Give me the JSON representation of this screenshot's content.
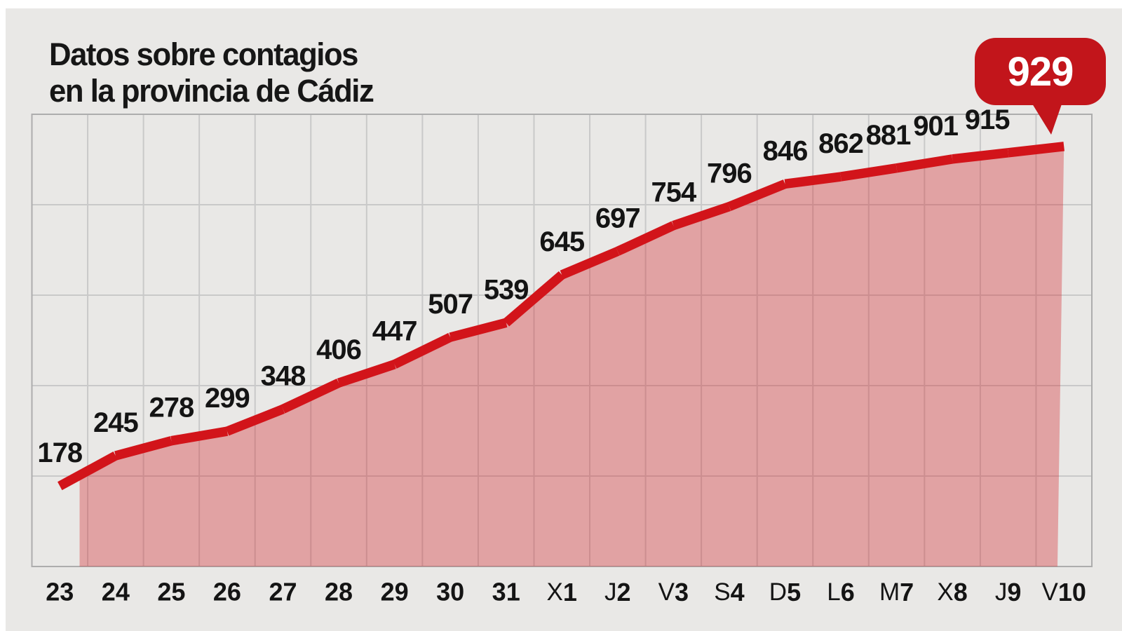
{
  "header": {
    "title_line1": "Datos sobre contagios",
    "title_line2": "en la provincia de Cádiz"
  },
  "callout": {
    "value": "929"
  },
  "colors": {
    "page": "#ffffff",
    "background": "#e9e8e6",
    "grid": "#c9c9c9",
    "border": "#adadad",
    "line": "#d2141a",
    "fill": "rgba(210,20,26,0.33)",
    "callout": "#c2151b",
    "text": "#161616"
  },
  "chart_data": {
    "type": "area",
    "title": "Datos sobre contagios en la provincia de Cádiz",
    "xlabel": "",
    "ylabel": "",
    "categories": [
      "23",
      "24",
      "25",
      "26",
      "27",
      "28",
      "29",
      "30",
      "31",
      "X1",
      "J2",
      "V3",
      "S4",
      "D5",
      "L6",
      "M7",
      "X8",
      "J9",
      "V10"
    ],
    "x_label_parts": [
      {
        "num": "23"
      },
      {
        "num": "24"
      },
      {
        "num": "25"
      },
      {
        "num": "26"
      },
      {
        "num": "27"
      },
      {
        "num": "28"
      },
      {
        "num": "29"
      },
      {
        "num": "30"
      },
      {
        "num": "31"
      },
      {
        "pre": "X",
        "num": "1"
      },
      {
        "pre": "J",
        "num": "2"
      },
      {
        "pre": "V",
        "num": "3"
      },
      {
        "pre": "S",
        "num": "4"
      },
      {
        "pre": "D",
        "num": "5"
      },
      {
        "pre": "L",
        "num": "6"
      },
      {
        "pre": "M",
        "num": "7"
      },
      {
        "pre": "X",
        "num": "8"
      },
      {
        "pre": "J",
        "num": "9"
      },
      {
        "pre": "V",
        "num": "10"
      }
    ],
    "values": [
      178,
      245,
      278,
      299,
      348,
      406,
      447,
      507,
      539,
      645,
      697,
      754,
      796,
      846,
      862,
      881,
      901,
      915,
      929
    ],
    "ylim": [
      0,
      1000
    ],
    "grid_rows": 5,
    "grid_on": true,
    "legend": "none",
    "callout_value": "929",
    "data_label_offsets": {
      "15": -12,
      "16": -24,
      "17": -30
    }
  }
}
